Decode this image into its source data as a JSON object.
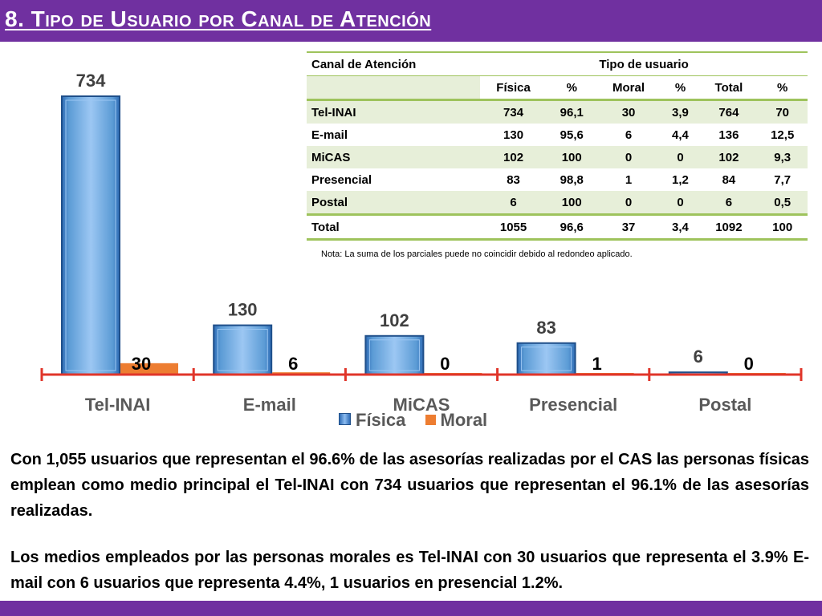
{
  "title": "8. Tipo de Usuario por Canal de Atención",
  "table": {
    "header_canal": "Canal de Atención",
    "header_group": "Tipo de usuario",
    "columns": [
      "Física",
      "%",
      "Moral",
      "%",
      "Total",
      "%"
    ],
    "rows": [
      {
        "canal": "Tel-INAI",
        "values": [
          "734",
          "96,1",
          "30",
          "3,9",
          "764",
          "70"
        ]
      },
      {
        "canal": "E-mail",
        "values": [
          "130",
          "95,6",
          "6",
          "4,4",
          "136",
          "12,5"
        ]
      },
      {
        "canal": "MiCAS",
        "values": [
          "102",
          "100",
          "0",
          "0",
          "102",
          "9,3"
        ]
      },
      {
        "canal": "Presencial",
        "values": [
          "83",
          "98,8",
          "1",
          "1,2",
          "84",
          "7,7"
        ]
      },
      {
        "canal": "Postal",
        "values": [
          "6",
          "100",
          "0",
          "0",
          "6",
          "0,5"
        ]
      }
    ],
    "total": {
      "canal": "Total",
      "values": [
        "1055",
        "96,6",
        "37",
        "3,4",
        "1092",
        "100"
      ]
    }
  },
  "note": "Nota: La suma de los parciales puede no coincidir debido al redondeo aplicado.",
  "chart_data": {
    "type": "bar",
    "categories": [
      "Tel-INAI",
      "E-mail",
      "MiCAS",
      "Presencial",
      "Postal"
    ],
    "series": [
      {
        "name": "Física",
        "values": [
          734,
          130,
          102,
          83,
          6
        ],
        "color": "#5b9bd5"
      },
      {
        "name": "Moral",
        "values": [
          30,
          6,
          0,
          1,
          0
        ],
        "color": "#ed7d31"
      }
    ],
    "ylim": [
      0,
      734
    ],
    "legend_position": "bottom"
  },
  "paragraphs": [
    "Con 1,055 usuarios que representan el 96.6% de las asesorías realizadas por el CAS las personas físicas emplean como medio principal el Tel-INAI con 734 usuarios que representan el 96.1% de las asesorías realizadas.",
    "Los medios empleados por las personas morales es Tel-INAI con 30 usuarios que representa el 3.9%  E-mail con 6 usuarios que representa 4.4%, 1 usuarios en presencial 1.2%."
  ]
}
